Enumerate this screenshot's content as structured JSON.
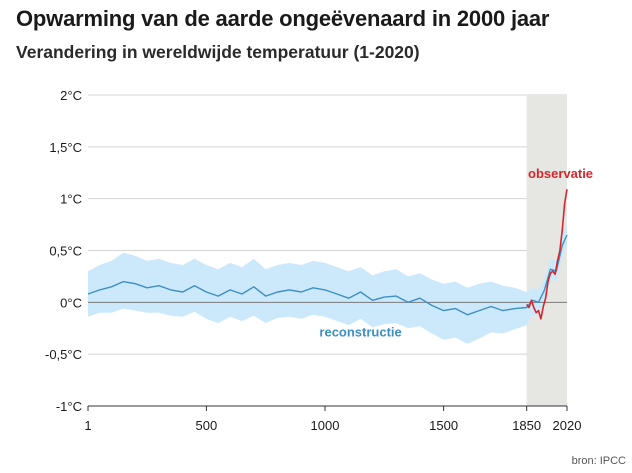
{
  "title": "Opwarming van de aarde ongeëvenaard in 2000 jaar",
  "subtitle": "Verandering in wereldwijde temperatuur (1-2020)",
  "source": "bron: IPCC",
  "colors": {
    "reconstruction_line": "#3d8fc4",
    "uncertainty_band": "#cce9fb",
    "observation_line": "#d7262b",
    "highlight_band": "#e6e6e2",
    "zero_line": "#7a7a7a",
    "grid": "#d4d4d4"
  },
  "chart_data": {
    "type": "line",
    "title": "",
    "xlabel": "",
    "ylabel": "",
    "xlim": [
      1,
      2020
    ],
    "ylim": [
      -1,
      2
    ],
    "x_ticks": [
      {
        "value": 1,
        "label": "1"
      },
      {
        "value": 500,
        "label": "500"
      },
      {
        "value": 1000,
        "label": "1000"
      },
      {
        "value": 1500,
        "label": "1500"
      },
      {
        "value": 1850,
        "label": "1850"
      },
      {
        "value": 2020,
        "label": "2020"
      }
    ],
    "y_ticks": [
      {
        "value": 2,
        "label": "2°C"
      },
      {
        "value": 1.5,
        "label": "1,5°C"
      },
      {
        "value": 1,
        "label": "1°C"
      },
      {
        "value": 0.5,
        "label": "0,5°C"
      },
      {
        "value": 0,
        "label": "0°C"
      },
      {
        "value": -0.5,
        "label": "-0,5°C"
      },
      {
        "value": -1,
        "label": "-1°C"
      }
    ],
    "grid": true,
    "highlight_period": [
      1850,
      2020
    ],
    "series": [
      {
        "name": "reconstructie",
        "x": [
          1,
          50,
          100,
          150,
          200,
          250,
          300,
          350,
          400,
          450,
          500,
          550,
          600,
          650,
          700,
          750,
          800,
          850,
          900,
          950,
          1000,
          1050,
          1100,
          1150,
          1200,
          1250,
          1300,
          1350,
          1400,
          1450,
          1500,
          1550,
          1600,
          1650,
          1700,
          1750,
          1800,
          1850,
          1875,
          1900,
          1925,
          1950,
          1975,
          2000,
          2020
        ],
        "y": [
          0.08,
          0.12,
          0.15,
          0.2,
          0.18,
          0.14,
          0.16,
          0.12,
          0.1,
          0.16,
          0.1,
          0.06,
          0.12,
          0.08,
          0.15,
          0.06,
          0.1,
          0.12,
          0.1,
          0.14,
          0.12,
          0.08,
          0.04,
          0.1,
          0.02,
          0.05,
          0.06,
          0.0,
          0.04,
          -0.03,
          -0.08,
          -0.06,
          -0.12,
          -0.08,
          -0.04,
          -0.08,
          -0.06,
          -0.05,
          0.02,
          0.0,
          0.12,
          0.32,
          0.3,
          0.55,
          0.65
        ],
        "lower": [
          -0.14,
          -0.1,
          -0.1,
          -0.06,
          -0.08,
          -0.1,
          -0.1,
          -0.13,
          -0.14,
          -0.09,
          -0.16,
          -0.2,
          -0.14,
          -0.18,
          -0.13,
          -0.2,
          -0.15,
          -0.14,
          -0.16,
          -0.12,
          -0.14,
          -0.18,
          -0.22,
          -0.16,
          -0.24,
          -0.21,
          -0.2,
          -0.25,
          -0.23,
          -0.3,
          -0.36,
          -0.34,
          -0.4,
          -0.35,
          -0.29,
          -0.3,
          -0.26,
          -0.22,
          -0.12,
          -0.12,
          0.0,
          0.22,
          0.2,
          0.45,
          0.55
        ],
        "upper": [
          0.3,
          0.36,
          0.4,
          0.48,
          0.45,
          0.4,
          0.42,
          0.38,
          0.36,
          0.42,
          0.36,
          0.32,
          0.38,
          0.34,
          0.42,
          0.32,
          0.36,
          0.38,
          0.36,
          0.4,
          0.38,
          0.34,
          0.3,
          0.34,
          0.26,
          0.3,
          0.32,
          0.25,
          0.28,
          0.22,
          0.18,
          0.2,
          0.14,
          0.18,
          0.2,
          0.16,
          0.14,
          0.1,
          0.14,
          0.12,
          0.22,
          0.42,
          0.4,
          0.65,
          0.75
        ]
      },
      {
        "name": "observatie",
        "x": [
          1850,
          1860,
          1870,
          1880,
          1890,
          1900,
          1910,
          1920,
          1930,
          1940,
          1950,
          1960,
          1970,
          1980,
          1990,
          2000,
          2010,
          2020
        ],
        "y": [
          -0.02,
          -0.05,
          0.02,
          -0.05,
          -0.1,
          -0.08,
          -0.16,
          -0.04,
          0.04,
          0.2,
          0.28,
          0.3,
          0.27,
          0.4,
          0.5,
          0.7,
          0.95,
          1.09
        ]
      }
    ],
    "annotations": [
      {
        "text": "reconstructie",
        "series": "reconstructie"
      },
      {
        "text": "observatie",
        "series": "observatie"
      }
    ]
  }
}
